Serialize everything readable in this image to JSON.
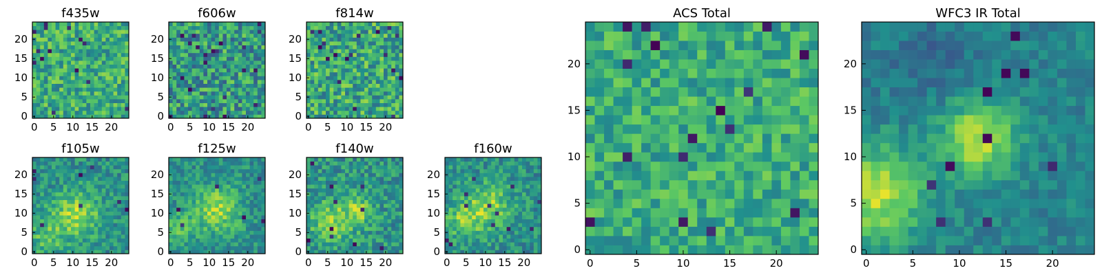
{
  "figure": {
    "colormap": [
      "#440154",
      "#3b528b",
      "#21908d",
      "#5dc962",
      "#fde725"
    ]
  },
  "chart_data": [
    {
      "type": "heatmap",
      "title": "f435w",
      "grid_size": 25,
      "xlim": [
        0,
        24
      ],
      "ylim": [
        0,
        24
      ],
      "xticks": [
        "0",
        "5",
        "10",
        "15",
        "20"
      ],
      "yticks": [
        "0",
        "5",
        "10",
        "15",
        "20"
      ],
      "pattern": "uniform noise, mostly green-yellow with scattered dark purple pixels",
      "seed": 11,
      "base": 0.62,
      "noise": 0.22,
      "blobs": [],
      "dark_pixels": 14
    },
    {
      "type": "heatmap",
      "title": "f606w",
      "grid_size": 25,
      "xlim": [
        0,
        24
      ],
      "ylim": [
        0,
        24
      ],
      "xticks": [
        "0",
        "5",
        "10",
        "15",
        "20"
      ],
      "yticks": [
        "0",
        "5",
        "10",
        "15",
        "20"
      ],
      "pattern": "uniform noise, green with many blue-purple pixels",
      "seed": 23,
      "base": 0.55,
      "noise": 0.26,
      "blobs": [],
      "dark_pixels": 22
    },
    {
      "type": "heatmap",
      "title": "f814w",
      "grid_size": 25,
      "xlim": [
        0,
        24
      ],
      "ylim": [
        0,
        24
      ],
      "xticks": [
        "0",
        "5",
        "10",
        "15",
        "20"
      ],
      "yticks": [
        "0",
        "5",
        "10",
        "15",
        "20"
      ],
      "pattern": "uniform noise, green-yellow with scattered dark pixels",
      "seed": 37,
      "base": 0.6,
      "noise": 0.25,
      "blobs": [],
      "dark_pixels": 18
    },
    {
      "type": "heatmap",
      "title": "f105w",
      "grid_size": 25,
      "xlim": [
        0,
        24
      ],
      "ylim": [
        0,
        24
      ],
      "xticks": [
        "0",
        "5",
        "10",
        "15",
        "20"
      ],
      "yticks": [
        "0",
        "5",
        "10",
        "15",
        "20"
      ],
      "pattern": "bright yellow blob near center-left, darker edges",
      "seed": 41,
      "base": 0.5,
      "noise": 0.16,
      "blobs": [
        {
          "x": 11,
          "y": 10,
          "r": 6,
          "a": 0.35
        },
        {
          "x": 3,
          "y": 4,
          "r": 5,
          "a": 0.2
        }
      ],
      "dark_pixels": 8
    },
    {
      "type": "heatmap",
      "title": "f125w",
      "grid_size": 25,
      "xlim": [
        0,
        24
      ],
      "ylim": [
        0,
        24
      ],
      "xticks": [
        "0",
        "5",
        "10",
        "15",
        "20"
      ],
      "yticks": [
        "0",
        "5",
        "10",
        "15",
        "20"
      ],
      "pattern": "bright yellow blob near center, smooth variation",
      "seed": 53,
      "base": 0.5,
      "noise": 0.15,
      "blobs": [
        {
          "x": 12,
          "y": 11,
          "r": 6,
          "a": 0.35
        },
        {
          "x": 2,
          "y": 6,
          "r": 4,
          "a": 0.2
        }
      ],
      "dark_pixels": 6
    },
    {
      "type": "heatmap",
      "title": "f140w",
      "grid_size": 25,
      "xlim": [
        0,
        24
      ],
      "ylim": [
        0,
        24
      ],
      "xticks": [
        "0",
        "5",
        "10",
        "15",
        "20"
      ],
      "yticks": [
        "0",
        "5",
        "10",
        "15",
        "20"
      ],
      "pattern": "moderate green-yellow with bright region center-left",
      "seed": 67,
      "base": 0.52,
      "noise": 0.18,
      "blobs": [
        {
          "x": 6,
          "y": 8,
          "r": 6,
          "a": 0.25
        },
        {
          "x": 13,
          "y": 11,
          "r": 4,
          "a": 0.25
        }
      ],
      "dark_pixels": 10
    },
    {
      "type": "heatmap",
      "title": "f160w",
      "grid_size": 25,
      "xlim": [
        0,
        24
      ],
      "ylim": [
        0,
        24
      ],
      "xticks": [
        "0",
        "5",
        "10",
        "15",
        "20"
      ],
      "yticks": [
        "0",
        "5",
        "10",
        "15",
        "20"
      ],
      "pattern": "bright yellow blob center, scattered dark pixels",
      "seed": 79,
      "base": 0.5,
      "noise": 0.17,
      "blobs": [
        {
          "x": 11,
          "y": 12,
          "r": 6,
          "a": 0.3
        },
        {
          "x": 4,
          "y": 8,
          "r": 5,
          "a": 0.25
        }
      ],
      "dark_pixels": 12
    },
    {
      "type": "heatmap",
      "title": "ACS Total",
      "grid_size": 25,
      "xlim": [
        0,
        24
      ],
      "ylim": [
        0,
        24
      ],
      "xticks": [
        "0",
        "5",
        "10",
        "15",
        "20"
      ],
      "yticks": [
        "0",
        "5",
        "10",
        "15",
        "20"
      ],
      "pattern": "uniform noise, green-yellow with scattered dark purple pixels",
      "seed": 97,
      "base": 0.62,
      "noise": 0.18,
      "blobs": [],
      "dark_pixels": 16
    },
    {
      "type": "heatmap",
      "title": "WFC3 IR Total",
      "grid_size": 25,
      "xlim": [
        0,
        24
      ],
      "ylim": [
        0,
        24
      ],
      "xticks": [
        "0",
        "5",
        "10",
        "15",
        "20"
      ],
      "yticks": [
        "0",
        "5",
        "10",
        "15",
        "20"
      ],
      "pattern": "smooth field, yellow blob at center and left edge, dark pixels on right",
      "seed": 113,
      "base": 0.45,
      "noise": 0.1,
      "blobs": [
        {
          "x": 12,
          "y": 12,
          "r": 4,
          "a": 0.45
        },
        {
          "x": 1,
          "y": 6,
          "r": 5,
          "a": 0.45
        },
        {
          "x": 7,
          "y": 20,
          "r": 5,
          "a": -0.1
        }
      ],
      "dark_pixels": 10
    }
  ]
}
